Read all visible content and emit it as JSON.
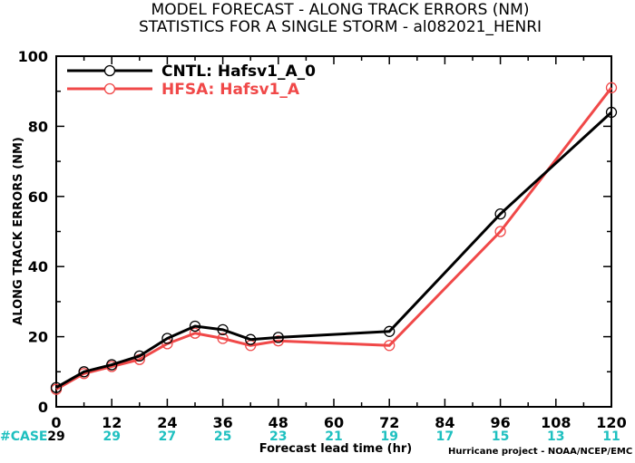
{
  "chart_data": {
    "type": "line",
    "title_lines": [
      "MODEL FORECAST - ALONG TRACK ERRORS (NM)",
      "STATISTICS FOR A SINGLE STORM - al082021_HENRI"
    ],
    "xlabel": "Forecast lead time (hr)",
    "ylabel": "ALONG TRACK ERRORS (NM)",
    "xlim": [
      0,
      120
    ],
    "ylim": [
      0,
      100
    ],
    "x_ticks": [
      0,
      12,
      24,
      36,
      48,
      60,
      72,
      84,
      96,
      108,
      120
    ],
    "y_ticks": [
      0,
      20,
      40,
      60,
      80,
      100
    ],
    "grid": false,
    "legend_position": "top-left",
    "series": [
      {
        "name": "CNTL: Hafsv1_A_0",
        "color": "#000000",
        "x": [
          0,
          6,
          12,
          18,
          24,
          30,
          36,
          42,
          48,
          72,
          96,
          120
        ],
        "values": [
          5.5,
          10,
          12,
          14.5,
          19.5,
          23,
          22,
          19.2,
          19.8,
          21.5,
          55,
          84
        ]
      },
      {
        "name": "HFSA: Hafsv1_A",
        "color": "#f04848",
        "x": [
          0,
          6,
          12,
          18,
          24,
          30,
          36,
          42,
          48,
          72,
          96,
          120
        ],
        "values": [
          5,
          9.5,
          11.5,
          13.5,
          18,
          21,
          19.5,
          17.5,
          18.8,
          17.5,
          50,
          91
        ]
      }
    ],
    "case_counts": {
      "label": "#CASE",
      "x": [
        0,
        12,
        24,
        36,
        48,
        60,
        72,
        84,
        96,
        108,
        120
      ],
      "values": [
        "29",
        "29",
        "27",
        "25",
        "23",
        "21",
        "19",
        "17",
        "15",
        "13",
        "11"
      ],
      "label_color": "#1fc0c0",
      "count_color": "#1fc0c0",
      "first_count_color": "#000000"
    },
    "credit": "Hurricane project - NOAA/NCEP/EMC"
  }
}
